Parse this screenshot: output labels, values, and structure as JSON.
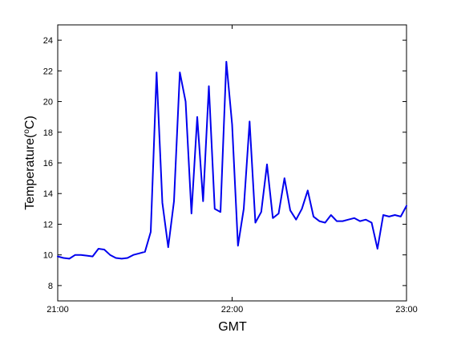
{
  "chart_data": {
    "type": "line",
    "title": "",
    "xlabel": "GMT",
    "ylabel": "Temperature(°C)",
    "ylabel_text": "Temperature(",
    "ylabel_unit_sup": "o",
    "ylabel_unit_end": "C)",
    "xlim": [
      "21:00",
      "23:00"
    ],
    "ylim": [
      7,
      25
    ],
    "x_ticks": [
      "21:00",
      "22:00",
      "23:00"
    ],
    "y_ticks": [
      8,
      10,
      12,
      14,
      16,
      18,
      20,
      22,
      24
    ],
    "grid": false,
    "line_color": "#0000ee",
    "series": [
      {
        "x_minutes_after_2100": [
          0,
          2,
          4,
          6,
          8,
          10,
          12,
          14,
          16,
          18,
          20,
          22,
          24,
          26,
          28,
          30,
          32,
          34,
          36,
          38,
          40,
          42,
          44,
          46,
          48,
          50,
          52,
          54,
          56,
          58,
          60,
          62,
          64,
          66,
          68,
          70,
          72,
          74,
          76,
          78,
          80,
          82,
          84,
          86,
          88,
          90,
          92,
          94,
          96,
          98,
          100,
          102,
          104,
          106,
          108,
          110,
          112,
          114,
          116,
          118,
          120
        ],
        "y": [
          9.9,
          9.8,
          9.75,
          10.0,
          10.0,
          9.95,
          9.9,
          10.4,
          10.35,
          10.0,
          9.8,
          9.75,
          9.8,
          10.0,
          10.1,
          10.2,
          11.5,
          21.9,
          13.4,
          10.5,
          13.5,
          21.9,
          20.0,
          12.7,
          19.0,
          13.5,
          21.0,
          13.0,
          12.8,
          22.6,
          18.5,
          10.6,
          13.0,
          18.7,
          12.1,
          12.8,
          15.9,
          12.4,
          12.7,
          15.0,
          12.9,
          12.3,
          13.0,
          14.2,
          12.5,
          12.2,
          12.1,
          12.6,
          12.2,
          12.2,
          12.3,
          12.4,
          12.2,
          12.3,
          12.1,
          10.4,
          12.6,
          12.5,
          12.6,
          12.5,
          13.2
        ]
      }
    ]
  }
}
